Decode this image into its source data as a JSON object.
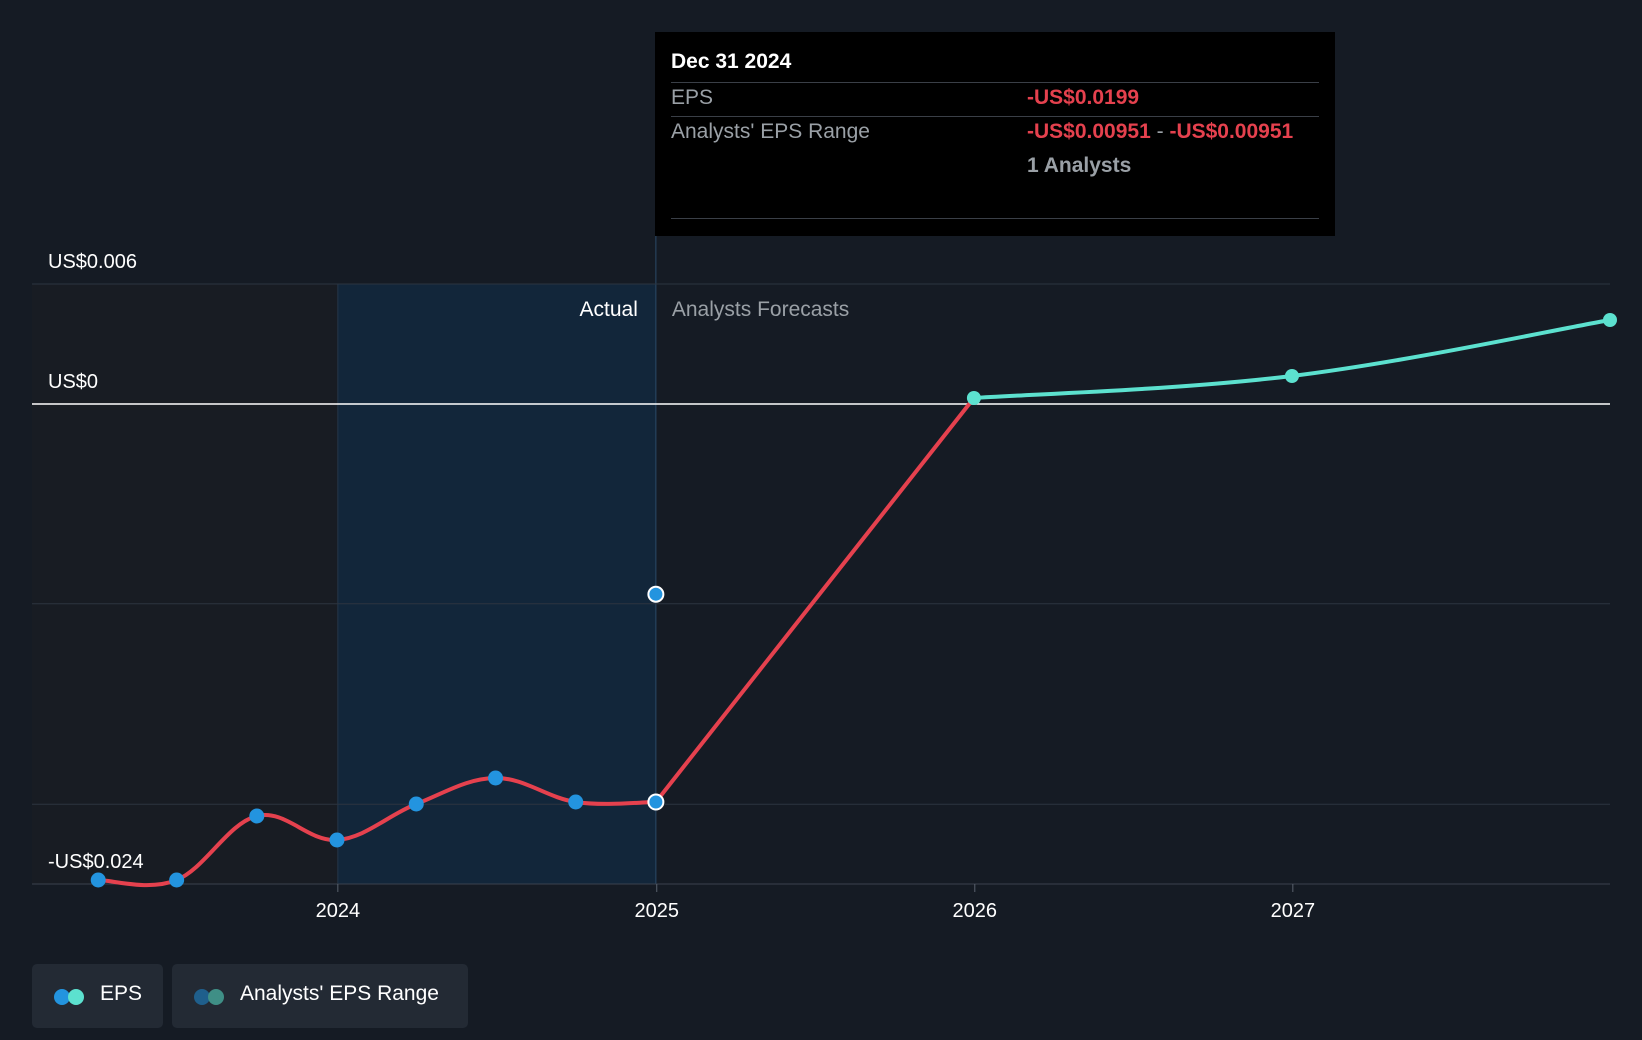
{
  "colors": {
    "actual": "#e5414e",
    "forecast": "#5ce1cf",
    "point": "#2394df",
    "range": "#2394df",
    "background": "#151b24",
    "grid": "#2c3440"
  },
  "chart_data": {
    "type": "line",
    "title": "",
    "y_tick_labels": [
      {
        "value": 0.006,
        "label": "US$0.006"
      },
      {
        "value": 0,
        "label": "US$0"
      },
      {
        "value": -0.024,
        "label": "-US$0.024"
      }
    ],
    "x_tick_labels": [
      "2024",
      "2025",
      "2026",
      "2027"
    ],
    "xlim": [
      "2023-01-15",
      "2027-12-31"
    ],
    "ylim": [
      -0.024,
      0.006
    ],
    "grid": true,
    "divider_date": "2024-12-31",
    "actual_label": "Actual",
    "forecast_label": "Analysts Forecasts",
    "series": [
      {
        "name": "EPS",
        "role": "actual",
        "x": [
          "2023-04-01",
          "2023-06-30",
          "2023-09-30",
          "2023-12-31",
          "2024-03-31",
          "2024-06-30",
          "2024-09-30",
          "2024-12-31"
        ],
        "values": [
          -0.0238,
          -0.0238,
          -0.0206,
          -0.0218,
          -0.02,
          -0.0187,
          -0.0199,
          -0.0199
        ]
      },
      {
        "name": "EPS",
        "role": "forecast",
        "x": [
          "2024-12-31",
          "2025-12-31",
          "2026-12-31",
          "2027-12-31"
        ],
        "values": [
          -0.0199,
          0.0003,
          0.0014,
          0.0042
        ]
      },
      {
        "name": "Analysts' EPS Range",
        "role": "range",
        "x": [
          "2024-12-31"
        ],
        "low": [
          -0.00951
        ],
        "high": [
          -0.00951
        ]
      }
    ]
  },
  "tooltip": {
    "date": "Dec 31 2024",
    "eps_label": "EPS",
    "eps_value": "-US$0.0199",
    "range_label": "Analysts' EPS Range",
    "range_low": "-US$0.00951",
    "range_sep": "-",
    "range_high": "-US$0.00951",
    "analysts": "1 Analysts"
  },
  "legend": {
    "eps_label": "EPS",
    "range_label": "Analysts' EPS Range"
  }
}
